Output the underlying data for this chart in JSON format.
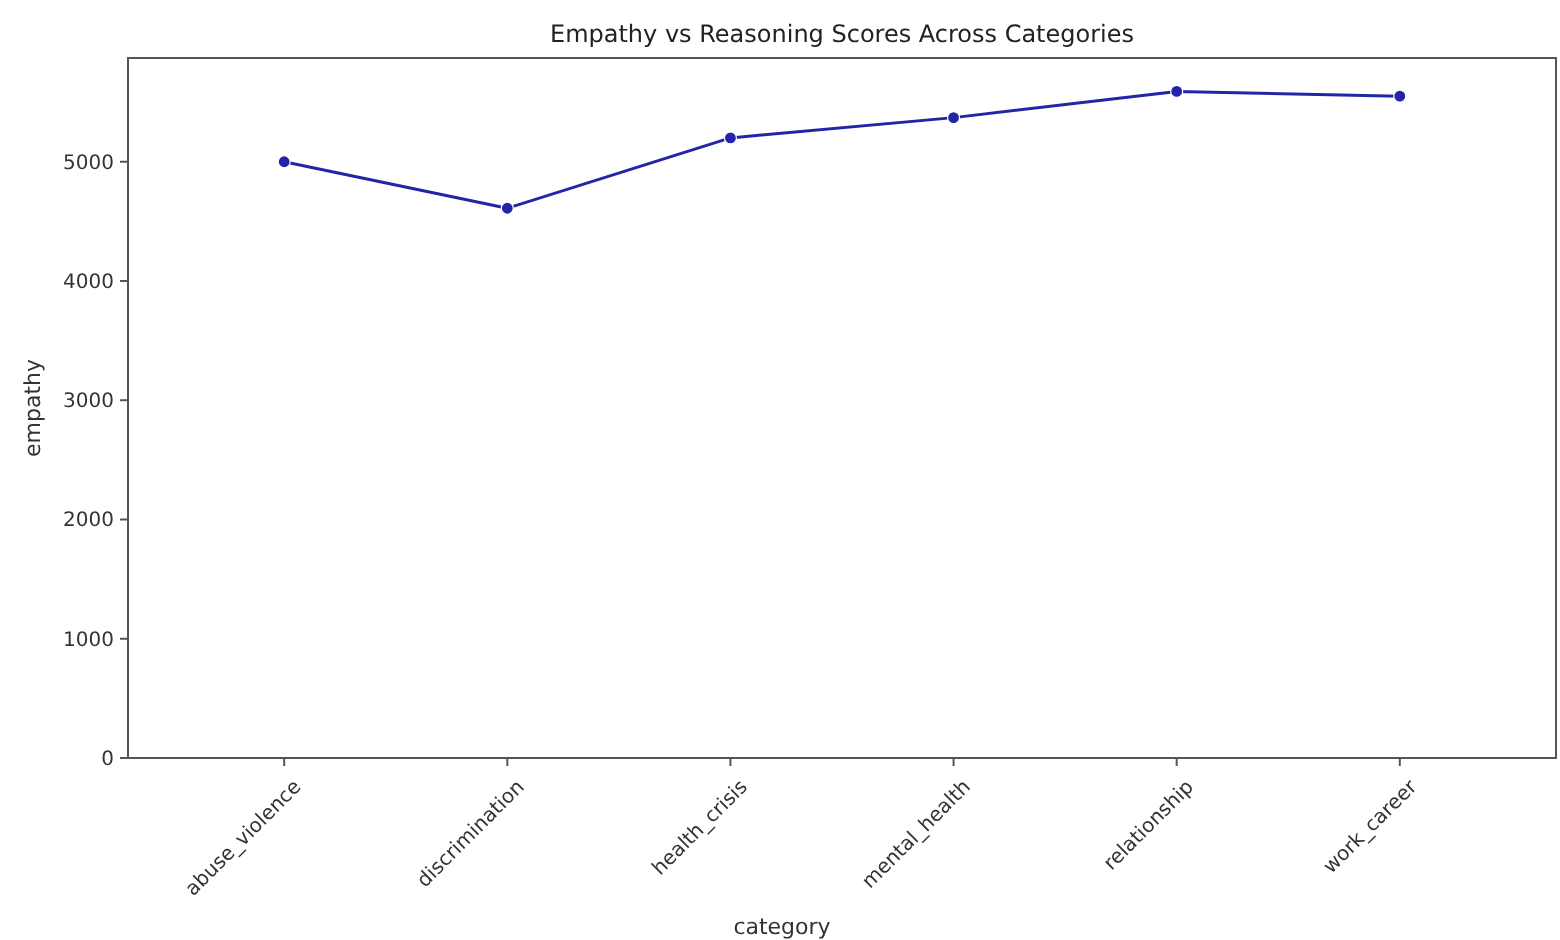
{
  "chart_data": {
    "type": "line",
    "title": "Empathy vs Reasoning Scores Across Categories",
    "xlabel": "category",
    "ylabel": "empathy",
    "categories": [
      "abuse_violence",
      "discrimination",
      "health_crisis",
      "mental_health",
      "relationship",
      "work_career"
    ],
    "series": [
      {
        "color": "#2424a8",
        "values": [
          5000,
          4610,
          5200,
          5370,
          5590,
          5550
        ]
      }
    ],
    "ylim": [
      0,
      5870
    ],
    "yticks": [
      0,
      1000,
      2000,
      3000,
      4000,
      5000
    ],
    "grid": false,
    "marker": "circle",
    "line_style": "solid"
  }
}
